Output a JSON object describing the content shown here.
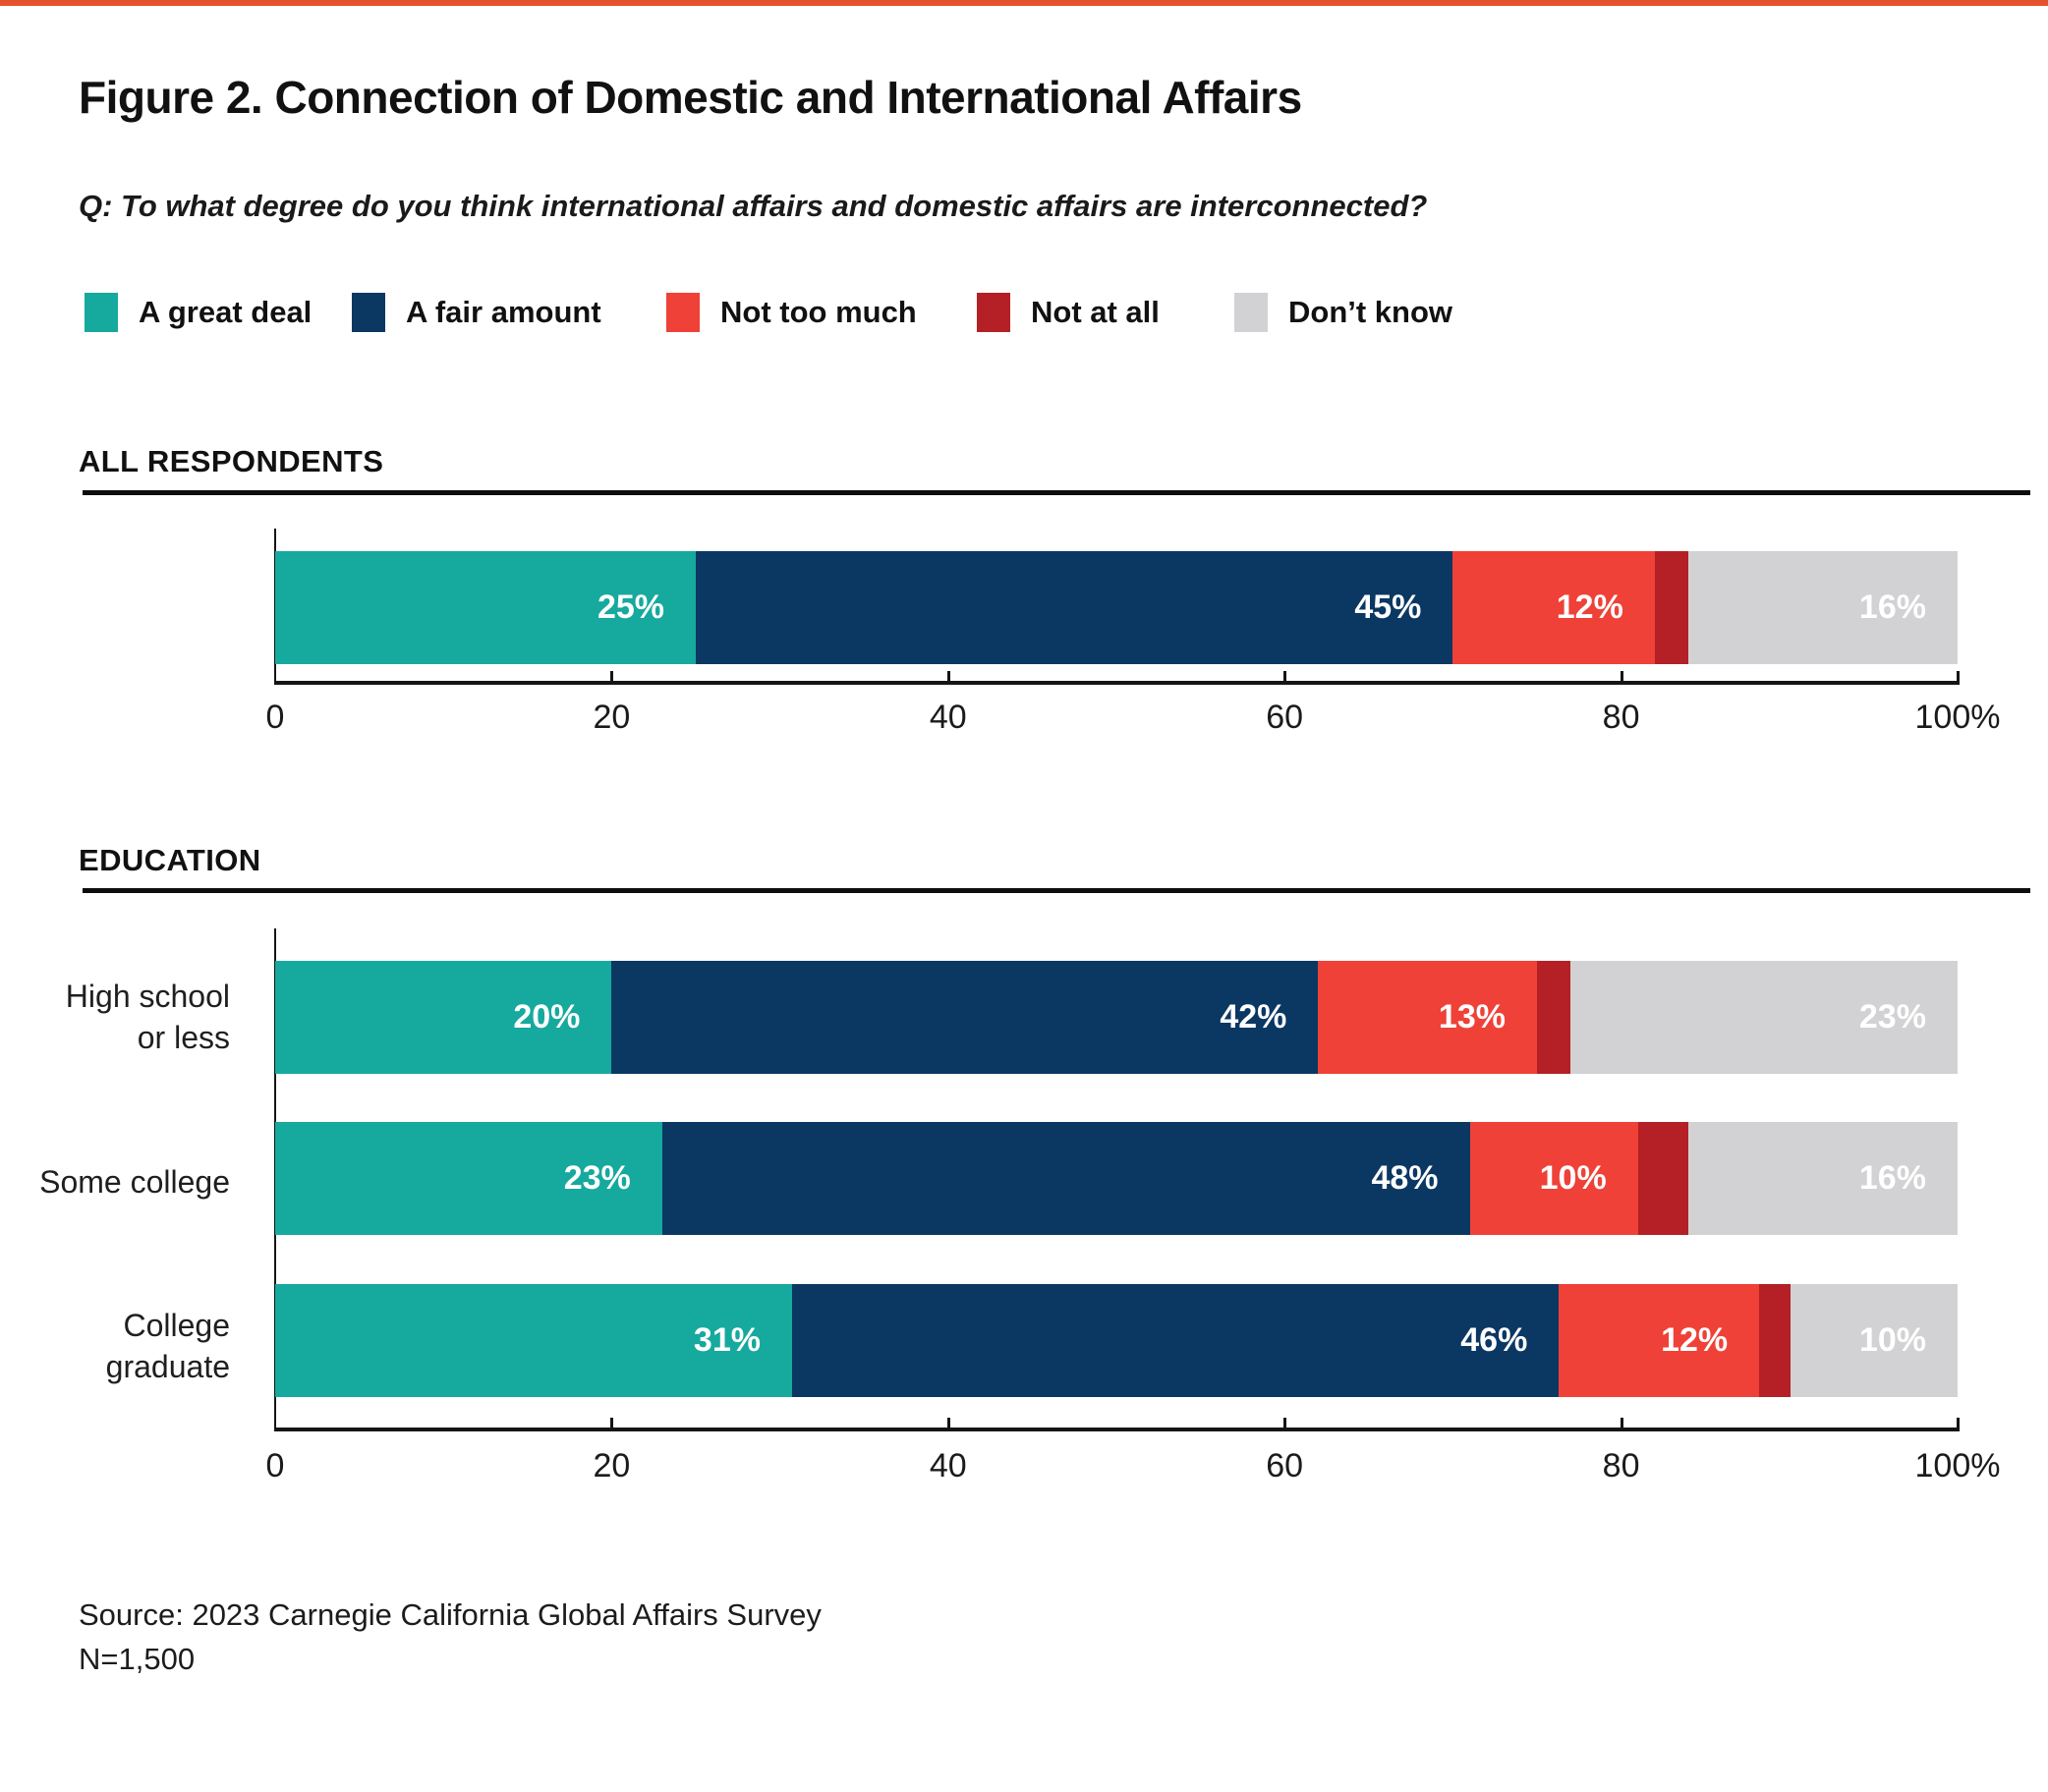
{
  "accent_color": "#E4532D",
  "header": {
    "title": "Figure 2. Connection of Domestic and International Affairs",
    "question": "Q: To what degree do you think international affairs and domestic affairs are interconnected?"
  },
  "legend": {
    "items": [
      {
        "label": "A great deal",
        "color": "#16A99E"
      },
      {
        "label": "A fair amount",
        "color": "#0B3763"
      },
      {
        "label": "Not too much",
        "color": "#EF4137"
      },
      {
        "label": "Not at all",
        "color": "#B42025"
      },
      {
        "label": "Don’t know",
        "color": "#D2D2D4"
      }
    ]
  },
  "footer": {
    "source": "Source: 2023 Carnegie California Global Affairs Survey",
    "sample_size": "N=1,500"
  },
  "chart_data": {
    "type": "bar",
    "stacked": true,
    "orientation": "horizontal",
    "title": "Figure 2. Connection of Domestic and International Affairs",
    "question": "Q: To what degree do you think international affairs and domestic affairs are interconnected?",
    "xlim": [
      0,
      100
    ],
    "x_ticks": [
      {
        "value": 0,
        "label": "0"
      },
      {
        "value": 20,
        "label": "20"
      },
      {
        "value": 40,
        "label": "40"
      },
      {
        "value": 60,
        "label": "60"
      },
      {
        "value": 80,
        "label": "80"
      },
      {
        "value": 100,
        "label": "100%"
      }
    ],
    "series_names": [
      "A great deal",
      "A fair amount",
      "Not too much",
      "Not at all",
      "Don’t know"
    ],
    "series_colors": [
      "#16A99E",
      "#0B3763",
      "#EF4137",
      "#B42025",
      "#D2D2D4"
    ],
    "value_label_suffix": "%",
    "value_label_color": "#FFFFFF",
    "min_value_for_label": 5,
    "legend_position": "top",
    "grid": false,
    "sections": [
      {
        "header": "ALL RESPONDENTS",
        "rows": [
          {
            "label": "",
            "label_lines": [],
            "values": [
              25,
              45,
              12,
              2,
              16
            ]
          }
        ]
      },
      {
        "header": "EDUCATION",
        "rows": [
          {
            "label": "High school or less",
            "label_lines": [
              "High school",
              "or less"
            ],
            "values": [
              20,
              42,
              13,
              2,
              23
            ]
          },
          {
            "label": "Some college",
            "label_lines": [
              "Some college"
            ],
            "values": [
              23,
              48,
              10,
              3,
              16
            ]
          },
          {
            "label": "College graduate",
            "label_lines": [
              "College",
              "graduate"
            ],
            "values": [
              31,
              46,
              12,
              1,
              10
            ]
          }
        ]
      }
    ]
  }
}
